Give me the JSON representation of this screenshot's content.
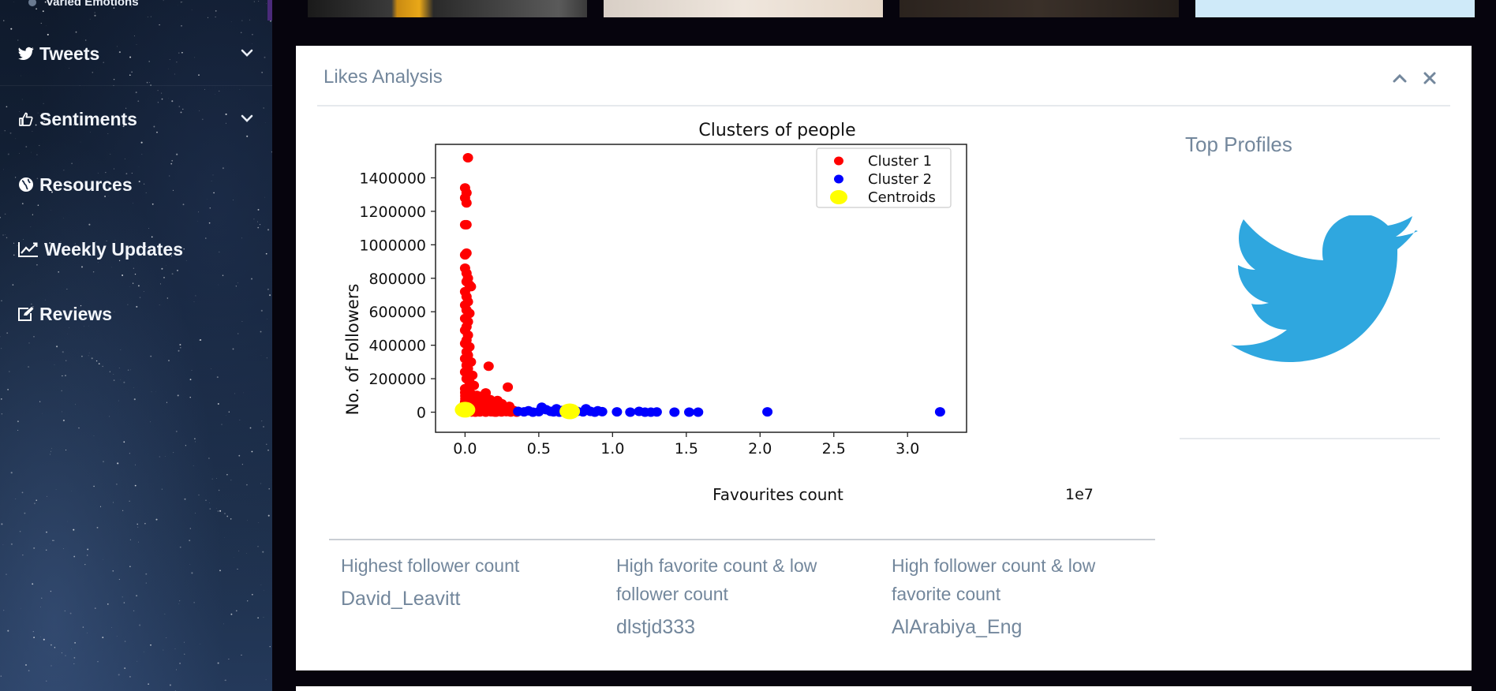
{
  "sidebar": {
    "top_item": "Varied Emotions",
    "items": [
      {
        "label": "Tweets",
        "icon": "twitter-icon",
        "has_chevron": true
      },
      {
        "label": "Sentiments",
        "icon": "thumbs-up-icon",
        "has_chevron": true
      },
      {
        "label": "Resources",
        "icon": "globe-icon",
        "has_chevron": false
      },
      {
        "label": "Weekly Updates",
        "icon": "line-chart-icon",
        "has_chevron": false
      },
      {
        "label": "Reviews",
        "icon": "edit-icon",
        "has_chevron": false
      }
    ]
  },
  "panel": {
    "title": "Likes Analysis",
    "tools": {
      "collapse_icon": "chevron-up-icon",
      "close_icon": "close-icon"
    },
    "top_profiles": {
      "heading": "Top Profiles",
      "image_icon": "twitter-bird-icon",
      "color": "#2fa7df"
    },
    "stats": [
      {
        "label": "Highest follower count",
        "value": "David_Leavitt"
      },
      {
        "label": "High favorite count & low follower count",
        "value": "dlstjd333"
      },
      {
        "label": "High follower count & low favorite count",
        "value": "AlArabiya_Eng"
      }
    ]
  },
  "chart_data": {
    "type": "scatter",
    "title": "Clusters of people",
    "xlabel": "Favourites count",
    "ylabel": "No. of Followers",
    "x_multiplier_label": "1e7",
    "xlim": [
      -0.2,
      3.4
    ],
    "ylim": [
      -120000,
      1600000
    ],
    "x_ticks": [
      "0.0",
      "0.5",
      "1.0",
      "1.5",
      "2.0",
      "2.5",
      "3.0"
    ],
    "y_ticks": [
      "0",
      "200000",
      "400000",
      "600000",
      "800000",
      "1000000",
      "1200000",
      "1400000"
    ],
    "legend_position": "top-right",
    "grid": false,
    "series": [
      {
        "name": "Cluster 1",
        "color": "#ff0000",
        "points": [
          [
            0.02,
            1520000
          ],
          [
            0.0,
            1340000
          ],
          [
            0.01,
            1310000
          ],
          [
            0.0,
            1280000
          ],
          [
            0.01,
            1250000
          ],
          [
            0.01,
            1120000
          ],
          [
            0.0,
            1120000
          ],
          [
            0.01,
            950000
          ],
          [
            0.0,
            940000
          ],
          [
            0.0,
            860000
          ],
          [
            0.01,
            830000
          ],
          [
            0.02,
            800000
          ],
          [
            0.01,
            780000
          ],
          [
            0.03,
            760000
          ],
          [
            0.04,
            750000
          ],
          [
            0.0,
            720000
          ],
          [
            0.01,
            690000
          ],
          [
            0.02,
            660000
          ],
          [
            0.0,
            640000
          ],
          [
            0.01,
            610000
          ],
          [
            0.03,
            590000
          ],
          [
            0.0,
            560000
          ],
          [
            0.02,
            540000
          ],
          [
            0.01,
            510000
          ],
          [
            0.0,
            490000
          ],
          [
            0.02,
            460000
          ],
          [
            0.01,
            430000
          ],
          [
            0.0,
            410000
          ],
          [
            0.03,
            390000
          ],
          [
            0.01,
            360000
          ],
          [
            0.02,
            340000
          ],
          [
            0.0,
            320000
          ],
          [
            0.04,
            300000
          ],
          [
            0.01,
            280000
          ],
          [
            0.16,
            275000
          ],
          [
            0.02,
            260000
          ],
          [
            0.0,
            240000
          ],
          [
            0.05,
            220000
          ],
          [
            0.01,
            200000
          ],
          [
            0.03,
            180000
          ],
          [
            0.06,
            160000
          ],
          [
            0.29,
            150000
          ],
          [
            0.0,
            140000
          ],
          [
            0.02,
            130000
          ],
          [
            0.14,
            115000
          ],
          [
            0.04,
            110000
          ],
          [
            0.08,
            100000
          ],
          [
            0.11,
            95000
          ],
          [
            0.01,
            90000
          ],
          [
            0.06,
            80000
          ],
          [
            0.17,
            75000
          ],
          [
            0.22,
            70000
          ],
          [
            0.03,
            65000
          ],
          [
            0.1,
            55000
          ],
          [
            0.25,
            50000
          ],
          [
            0.05,
            45000
          ],
          [
            0.13,
            40000
          ],
          [
            0.3,
            35000
          ],
          [
            0.02,
            30000
          ],
          [
            0.2,
            25000
          ],
          [
            0.08,
            20000
          ],
          [
            0.15,
            15000
          ],
          [
            0.26,
            12000
          ],
          [
            0.33,
            10000
          ],
          [
            0.04,
            8000
          ],
          [
            0.12,
            6000
          ],
          [
            0.18,
            5000
          ],
          [
            0.24,
            4000
          ],
          [
            0.28,
            3000
          ],
          [
            0.06,
            2000
          ],
          [
            0.1,
            1000
          ],
          [
            0.2,
            500
          ],
          [
            0.31,
            800
          ],
          [
            0.0,
            0
          ],
          [
            0.07,
            0
          ],
          [
            0.14,
            0
          ],
          [
            0.21,
            0
          ],
          [
            0.35,
            0
          ]
        ]
      },
      {
        "name": "Cluster 2",
        "color": "#0000ff",
        "points": [
          [
            0.36,
            5000
          ],
          [
            0.4,
            2000
          ],
          [
            0.43,
            8000
          ],
          [
            0.46,
            0
          ],
          [
            0.5,
            3000
          ],
          [
            0.52,
            30000
          ],
          [
            0.55,
            15000
          ],
          [
            0.58,
            5000
          ],
          [
            0.6,
            2000
          ],
          [
            0.62,
            20000
          ],
          [
            0.64,
            0
          ],
          [
            0.66,
            10000
          ],
          [
            0.68,
            3000
          ],
          [
            0.72,
            0
          ],
          [
            0.76,
            5000
          ],
          [
            0.8,
            2000
          ],
          [
            0.82,
            20000
          ],
          [
            0.85,
            5000
          ],
          [
            0.88,
            0
          ],
          [
            0.9,
            8000
          ],
          [
            0.93,
            3000
          ],
          [
            1.03,
            2000
          ],
          [
            1.12,
            0
          ],
          [
            1.18,
            5000
          ],
          [
            1.22,
            0
          ],
          [
            1.26,
            0
          ],
          [
            1.3,
            1000
          ],
          [
            1.42,
            0
          ],
          [
            1.52,
            0
          ],
          [
            1.58,
            0
          ],
          [
            2.05,
            2000
          ],
          [
            3.22,
            2000
          ]
        ]
      },
      {
        "name": "Centroids",
        "color": "#ffff00",
        "points": [
          [
            0.0,
            15000
          ],
          [
            0.71,
            5000
          ]
        ]
      }
    ]
  }
}
